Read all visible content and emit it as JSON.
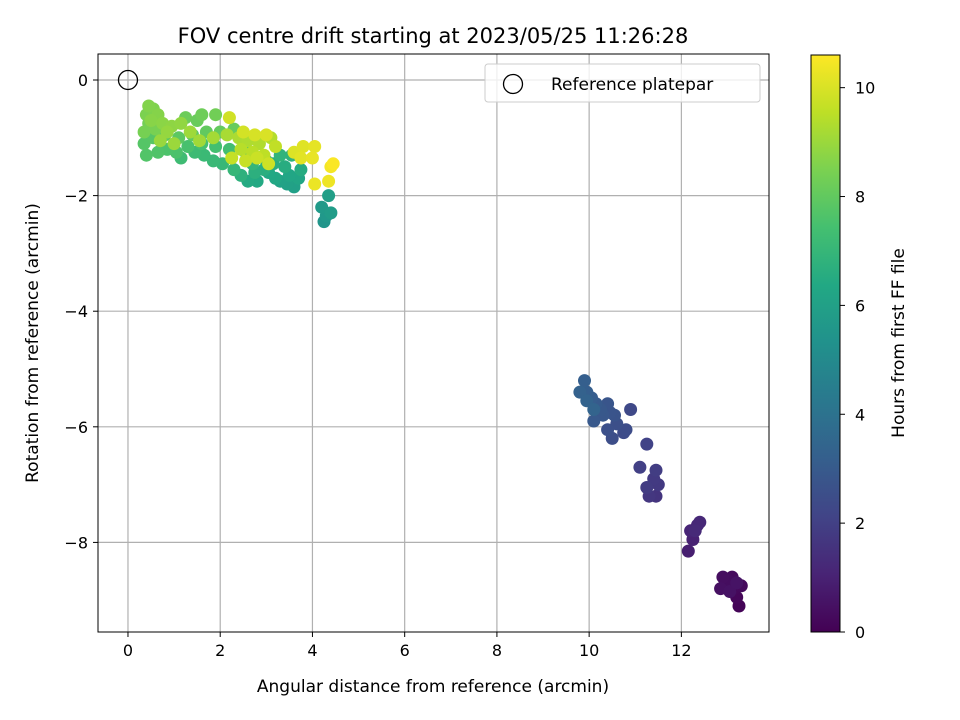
{
  "chart_data": {
    "type": "scatter",
    "title": "FOV centre drift starting at 2023/05/25 11:26:28",
    "xlabel": "Angular distance from reference (arcmin)",
    "ylabel": "Rotation from reference (arcmin)",
    "xlim": [
      -0.65,
      13.9
    ],
    "ylim": [
      -9.55,
      0.45
    ],
    "xticks": [
      0,
      2,
      4,
      6,
      8,
      10,
      12
    ],
    "yticks": [
      0,
      -2,
      -4,
      -6,
      -8
    ],
    "xtick_labels": [
      "0",
      "2",
      "4",
      "6",
      "8",
      "10",
      "12"
    ],
    "ytick_labels": [
      "0",
      "−2",
      "−4",
      "−6",
      "−8"
    ],
    "grid": true,
    "colormap": "viridis",
    "colorbar": {
      "label": "Hours from first FF file",
      "range": [
        0,
        10.6
      ],
      "ticks": [
        0,
        2,
        4,
        6,
        8,
        10
      ],
      "tick_labels": [
        "0",
        "2",
        "4",
        "6",
        "8",
        "10"
      ]
    },
    "reference": {
      "name": "Reference platepar",
      "x": 0,
      "y": 0
    },
    "legend": {
      "position": "top-right",
      "entries": [
        "Reference platepar"
      ]
    },
    "points": [
      [
        13.25,
        -9.1,
        0.1
      ],
      [
        13.2,
        -8.95,
        0.15
      ],
      [
        13.15,
        -8.8,
        0.2
      ],
      [
        13.3,
        -8.75,
        0.25
      ],
      [
        13.1,
        -8.6,
        0.3
      ],
      [
        13.0,
        -8.65,
        0.35
      ],
      [
        12.9,
        -8.6,
        0.4
      ],
      [
        12.85,
        -8.8,
        0.45
      ],
      [
        13.05,
        -8.85,
        0.5
      ],
      [
        13.2,
        -8.7,
        0.55
      ],
      [
        12.15,
        -8.15,
        0.9
      ],
      [
        12.25,
        -7.95,
        1.0
      ],
      [
        12.2,
        -7.8,
        1.1
      ],
      [
        12.35,
        -7.7,
        1.15
      ],
      [
        12.4,
        -7.65,
        1.2
      ],
      [
        12.3,
        -7.8,
        1.25
      ],
      [
        11.45,
        -7.2,
        1.6
      ],
      [
        11.3,
        -7.2,
        1.7
      ],
      [
        11.5,
        -7.0,
        1.75
      ],
      [
        11.4,
        -6.9,
        1.8
      ],
      [
        11.25,
        -7.05,
        1.85
      ],
      [
        11.45,
        -6.75,
        1.9
      ],
      [
        11.1,
        -6.7,
        2.0
      ],
      [
        11.25,
        -6.3,
        2.1
      ],
      [
        10.9,
        -5.7,
        2.3
      ],
      [
        10.75,
        -6.1,
        2.4
      ],
      [
        10.8,
        -6.05,
        2.45
      ],
      [
        10.5,
        -6.2,
        2.5
      ],
      [
        10.6,
        -5.95,
        2.55
      ],
      [
        10.4,
        -6.05,
        2.6
      ],
      [
        10.55,
        -5.8,
        2.7
      ],
      [
        10.45,
        -5.75,
        2.75
      ],
      [
        10.4,
        -5.6,
        2.8
      ],
      [
        10.3,
        -5.8,
        2.85
      ],
      [
        10.25,
        -5.7,
        2.9
      ],
      [
        10.1,
        -5.9,
        2.95
      ],
      [
        10.15,
        -5.6,
        3.0
      ],
      [
        10.05,
        -5.5,
        3.1
      ],
      [
        9.95,
        -5.4,
        3.15
      ],
      [
        9.9,
        -5.2,
        3.2
      ],
      [
        9.8,
        -5.4,
        3.3
      ],
      [
        9.95,
        -5.55,
        3.35
      ],
      [
        10.1,
        -5.7,
        3.4
      ],
      [
        4.25,
        -2.45,
        5.5
      ],
      [
        4.3,
        -2.35,
        5.6
      ],
      [
        4.2,
        -2.2,
        5.7
      ],
      [
        4.4,
        -2.3,
        5.8
      ],
      [
        4.35,
        -2.0,
        5.9
      ],
      [
        3.6,
        -1.85,
        6.0
      ],
      [
        3.45,
        -1.8,
        6.05
      ],
      [
        3.3,
        -1.75,
        6.1
      ],
      [
        3.7,
        -1.7,
        6.2
      ],
      [
        3.5,
        -1.65,
        6.25
      ],
      [
        3.2,
        -1.7,
        6.3
      ],
      [
        3.05,
        -1.6,
        6.35
      ],
      [
        2.8,
        -1.75,
        6.4
      ],
      [
        2.6,
        -1.75,
        6.45
      ],
      [
        3.75,
        -1.55,
        6.5
      ],
      [
        3.4,
        -1.5,
        6.55
      ],
      [
        3.15,
        -1.45,
        6.6
      ],
      [
        2.95,
        -1.55,
        6.65
      ],
      [
        2.75,
        -1.6,
        6.7
      ],
      [
        2.45,
        -1.65,
        6.75
      ],
      [
        3.55,
        -1.3,
        6.8
      ],
      [
        3.3,
        -1.3,
        6.85
      ],
      [
        3.0,
        -1.4,
        6.9
      ],
      [
        2.7,
        -1.45,
        6.95
      ],
      [
        2.3,
        -1.55,
        7.0
      ],
      [
        2.05,
        -1.45,
        7.05
      ],
      [
        1.85,
        -1.4,
        7.1
      ],
      [
        1.65,
        -1.3,
        7.15
      ],
      [
        1.45,
        -1.25,
        7.2
      ],
      [
        1.15,
        -1.35,
        7.25
      ],
      [
        2.55,
        -1.25,
        7.3
      ],
      [
        2.2,
        -1.2,
        7.35
      ],
      [
        1.9,
        -1.15,
        7.4
      ],
      [
        1.6,
        -1.1,
        7.45
      ],
      [
        1.3,
        -1.15,
        7.5
      ],
      [
        1.05,
        -1.25,
        7.55
      ],
      [
        0.85,
        -1.2,
        7.6
      ],
      [
        0.65,
        -1.25,
        7.65
      ],
      [
        0.4,
        -1.3,
        7.7
      ],
      [
        0.35,
        -1.1,
        7.75
      ],
      [
        0.55,
        -1.0,
        7.8
      ],
      [
        0.8,
        -0.95,
        7.85
      ],
      [
        1.1,
        -1.0,
        7.9
      ],
      [
        1.4,
        -0.95,
        7.95
      ],
      [
        1.7,
        -0.9,
        8.0
      ],
      [
        2.0,
        -0.9,
        8.05
      ],
      [
        2.3,
        -0.85,
        8.1
      ],
      [
        1.5,
        -0.7,
        8.15
      ],
      [
        1.25,
        -0.65,
        8.2
      ],
      [
        1.6,
        -0.6,
        8.25
      ],
      [
        1.9,
        -0.6,
        8.3
      ],
      [
        0.45,
        -0.75,
        8.35
      ],
      [
        0.35,
        -0.9,
        8.4
      ],
      [
        0.6,
        -0.85,
        8.45
      ],
      [
        0.4,
        -0.6,
        8.5
      ],
      [
        0.55,
        -0.5,
        8.55
      ],
      [
        0.45,
        -0.45,
        8.6
      ],
      [
        0.65,
        -0.6,
        8.65
      ],
      [
        0.5,
        -0.7,
        8.7
      ],
      [
        0.75,
        -0.75,
        8.75
      ],
      [
        0.95,
        -0.8,
        8.8
      ],
      [
        1.15,
        -0.75,
        8.85
      ],
      [
        0.85,
        -0.9,
        8.9
      ],
      [
        0.7,
        -1.05,
        8.95
      ],
      [
        1.0,
        -1.1,
        9.0
      ],
      [
        1.35,
        -0.9,
        9.05
      ],
      [
        1.55,
        -1.05,
        9.1
      ],
      [
        1.85,
        -1.0,
        9.15
      ],
      [
        2.15,
        -0.95,
        9.2
      ],
      [
        2.4,
        -1.0,
        9.25
      ],
      [
        2.6,
        -1.05,
        9.3
      ],
      [
        2.85,
        -1.1,
        9.35
      ],
      [
        3.1,
        -1.0,
        9.4
      ],
      [
        2.45,
        -1.2,
        9.45
      ],
      [
        2.7,
        -1.25,
        9.5
      ],
      [
        2.95,
        -1.3,
        9.55
      ],
      [
        3.2,
        -1.15,
        9.6
      ],
      [
        2.25,
        -1.35,
        9.65
      ],
      [
        2.55,
        -1.4,
        9.7
      ],
      [
        2.8,
        -1.35,
        9.75
      ],
      [
        3.05,
        -1.45,
        9.8
      ],
      [
        2.2,
        -0.65,
        9.85
      ],
      [
        2.5,
        -0.9,
        9.9
      ],
      [
        2.75,
        -0.95,
        9.95
      ],
      [
        3.0,
        -0.95,
        10.0
      ],
      [
        3.6,
        -1.25,
        10.05
      ],
      [
        3.8,
        -1.15,
        10.1
      ],
      [
        3.75,
        -1.35,
        10.15
      ],
      [
        4.05,
        -1.15,
        10.2
      ],
      [
        4.0,
        -1.35,
        10.25
      ],
      [
        4.05,
        -1.8,
        10.3
      ],
      [
        4.35,
        -1.75,
        10.35
      ],
      [
        4.4,
        -1.5,
        10.45
      ],
      [
        4.45,
        -1.45,
        10.55
      ]
    ]
  }
}
